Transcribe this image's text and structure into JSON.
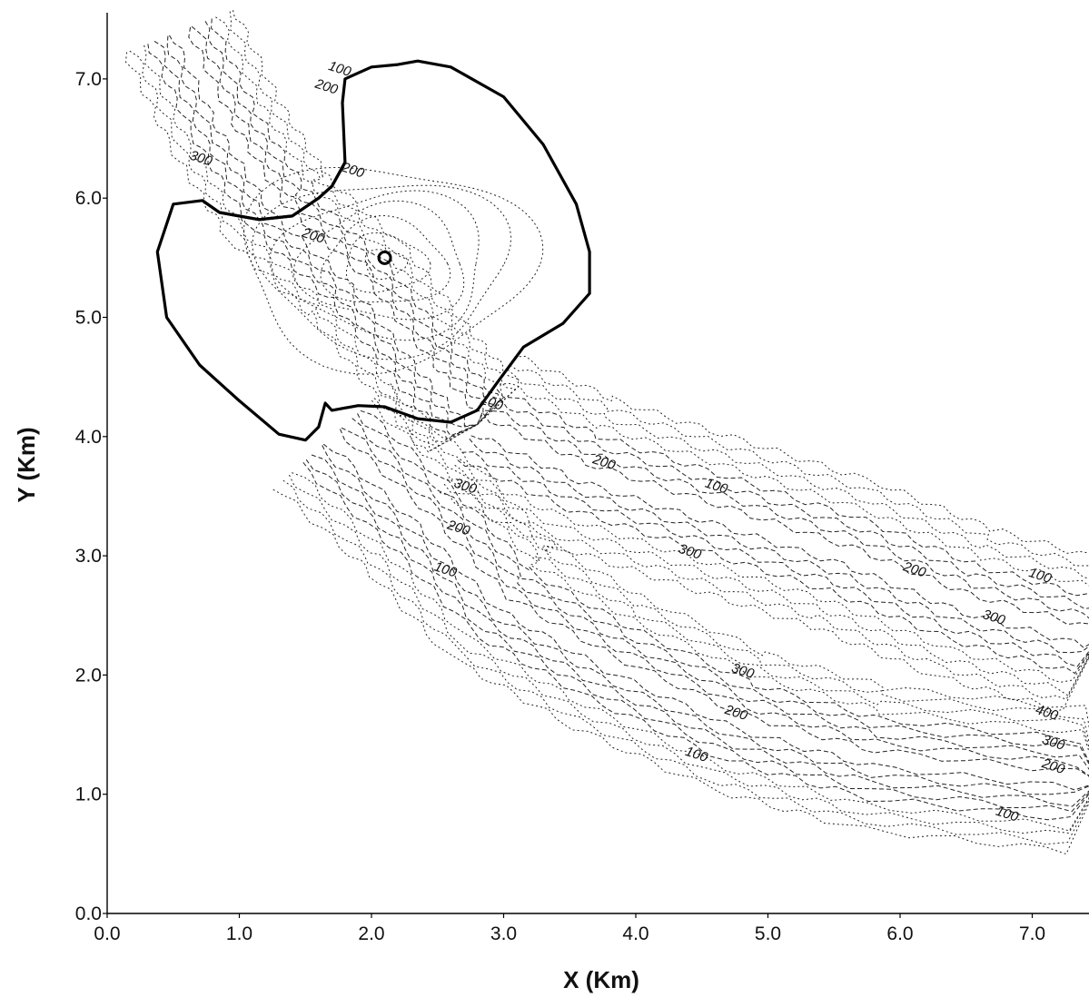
{
  "chart_data": {
    "type": "contour",
    "xlabel": "X (Km)",
    "ylabel": "Y (Km)",
    "xlim": [
      0.0,
      7.5
    ],
    "ylim": [
      0.0,
      7.5
    ],
    "x_ticks": [
      "0.0",
      "1.0",
      "2.0",
      "3.0",
      "4.0",
      "5.0",
      "6.0",
      "7.0"
    ],
    "y_ticks": [
      "0.0",
      "1.0",
      "2.0",
      "3.0",
      "4.0",
      "5.0",
      "6.0",
      "7.0"
    ],
    "grid": false,
    "center_marker": {
      "label": "o",
      "x": 2.1,
      "y": 5.5
    },
    "boundary": {
      "x": [
        2.35,
        2.6,
        3.0,
        3.3,
        3.55,
        3.65,
        3.65,
        3.45,
        3.15,
        2.95,
        2.8,
        2.6,
        2.35,
        2.1,
        1.9,
        1.7,
        1.65,
        1.6,
        1.5,
        1.3,
        1.0,
        0.7,
        0.45,
        0.38,
        0.5,
        0.72,
        0.85,
        1.15,
        1.4,
        1.6,
        1.7,
        1.8,
        1.78,
        1.8,
        2.0,
        2.2,
        2.35
      ],
      "y": [
        7.15,
        7.1,
        6.85,
        6.45,
        5.95,
        5.55,
        5.2,
        4.95,
        4.75,
        4.45,
        4.22,
        4.12,
        4.15,
        4.25,
        4.26,
        4.22,
        4.28,
        4.08,
        3.97,
        4.02,
        4.3,
        4.6,
        5.0,
        5.55,
        5.95,
        5.98,
        5.88,
        5.82,
        5.85,
        6.0,
        6.1,
        6.3,
        6.8,
        7.0,
        7.1,
        7.12,
        7.15
      ]
    },
    "contour_labels": [
      {
        "text": "100",
        "x": 1.75,
        "y": 7.05
      },
      {
        "text": "200",
        "x": 1.65,
        "y": 6.9
      },
      {
        "text": "300",
        "x": 0.7,
        "y": 6.3
      },
      {
        "text": "200",
        "x": 1.85,
        "y": 6.2
      },
      {
        "text": "200",
        "x": 1.55,
        "y": 5.65
      },
      {
        "text": "100",
        "x": 2.9,
        "y": 4.25
      },
      {
        "text": "200",
        "x": 3.75,
        "y": 3.75
      },
      {
        "text": "100",
        "x": 4.6,
        "y": 3.55
      },
      {
        "text": "300",
        "x": 2.7,
        "y": 3.55
      },
      {
        "text": "200",
        "x": 2.65,
        "y": 3.2
      },
      {
        "text": "300",
        "x": 4.4,
        "y": 3.0
      },
      {
        "text": "100",
        "x": 2.55,
        "y": 2.85
      },
      {
        "text": "200",
        "x": 6.1,
        "y": 2.85
      },
      {
        "text": "100",
        "x": 7.05,
        "y": 2.8
      },
      {
        "text": "300",
        "x": 6.7,
        "y": 2.45
      },
      {
        "text": "300",
        "x": 4.8,
        "y": 2.0
      },
      {
        "text": "200",
        "x": 4.75,
        "y": 1.65
      },
      {
        "text": "100",
        "x": 4.45,
        "y": 1.3
      },
      {
        "text": "400",
        "x": 7.1,
        "y": 1.65
      },
      {
        "text": "300",
        "x": 7.15,
        "y": 1.4
      },
      {
        "text": "200",
        "x": 7.15,
        "y": 1.2
      },
      {
        "text": "100",
        "x": 6.8,
        "y": 0.8
      }
    ]
  }
}
